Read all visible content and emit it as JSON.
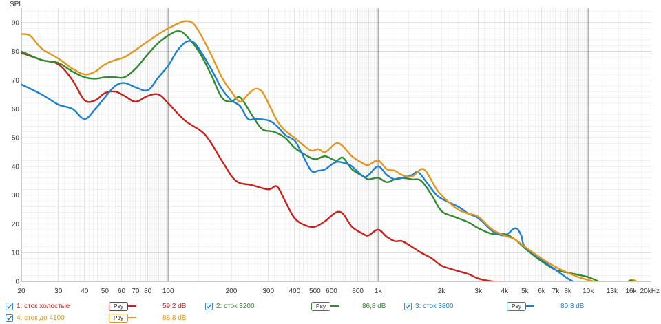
{
  "chart_data": {
    "type": "line",
    "ylabel": "SPL",
    "x_scale": "log",
    "xlim": [
      20,
      20000
    ],
    "ylim": [
      0,
      95
    ],
    "grid": true,
    "x_ticks": [
      {
        "v": 20,
        "label": "20"
      },
      {
        "v": 30,
        "label": "30"
      },
      {
        "v": 40,
        "label": "40"
      },
      {
        "v": 50,
        "label": "50"
      },
      {
        "v": 60,
        "label": "60"
      },
      {
        "v": 70,
        "label": "70"
      },
      {
        "v": 80,
        "label": "80"
      },
      {
        "v": 100,
        "label": "100"
      },
      {
        "v": 200,
        "label": "200"
      },
      {
        "v": 300,
        "label": "300"
      },
      {
        "v": 400,
        "label": "400"
      },
      {
        "v": 500,
        "label": "500"
      },
      {
        "v": 600,
        "label": "600"
      },
      {
        "v": 800,
        "label": "800"
      },
      {
        "v": 1000,
        "label": "1k"
      },
      {
        "v": 2000,
        "label": "2k"
      },
      {
        "v": 3000,
        "label": "3k"
      },
      {
        "v": 4000,
        "label": "4k"
      },
      {
        "v": 5000,
        "label": "5k"
      },
      {
        "v": 6000,
        "label": "6k"
      },
      {
        "v": 7000,
        "label": "7k"
      },
      {
        "v": 8000,
        "label": "8k"
      },
      {
        "v": 10000,
        "label": "10k"
      },
      {
        "v": 13000,
        "label": "13k"
      },
      {
        "v": 16000,
        "label": "16k"
      },
      {
        "v": 20000,
        "label": "20kHz"
      }
    ],
    "y_ticks": [
      0,
      10,
      20,
      30,
      40,
      50,
      60,
      70,
      80,
      90
    ],
    "series": [
      {
        "name": "1: сток холостые",
        "color": "#cc1f1a",
        "value_label": "59,2 dB",
        "points": [
          [
            20,
            79.5
          ],
          [
            25,
            77
          ],
          [
            30,
            75.5
          ],
          [
            35,
            70
          ],
          [
            40,
            63
          ],
          [
            45,
            63
          ],
          [
            50,
            65.5
          ],
          [
            56,
            66
          ],
          [
            62,
            64.5
          ],
          [
            70,
            62.5
          ],
          [
            80,
            64.5
          ],
          [
            90,
            65
          ],
          [
            100,
            62
          ],
          [
            120,
            56
          ],
          [
            150,
            51
          ],
          [
            180,
            42
          ],
          [
            210,
            35
          ],
          [
            250,
            33.5
          ],
          [
            300,
            32
          ],
          [
            330,
            33
          ],
          [
            360,
            28
          ],
          [
            400,
            22
          ],
          [
            450,
            19.5
          ],
          [
            500,
            19
          ],
          [
            560,
            21
          ],
          [
            630,
            24
          ],
          [
            680,
            23.5
          ],
          [
            750,
            19
          ],
          [
            850,
            16.5
          ],
          [
            900,
            16
          ],
          [
            1000,
            18
          ],
          [
            1100,
            15.5
          ],
          [
            1200,
            14
          ],
          [
            1300,
            14
          ],
          [
            1450,
            12
          ],
          [
            1600,
            10
          ],
          [
            1800,
            8
          ],
          [
            2000,
            5.5
          ],
          [
            2300,
            4
          ],
          [
            2700,
            2.5
          ],
          [
            3000,
            1
          ],
          [
            3500,
            0
          ],
          [
            4000,
            -0.3
          ],
          [
            5000,
            -0.8
          ]
        ]
      },
      {
        "name": "2: сток 3200",
        "color": "#2e8b2e",
        "value_label": "86,8 dB",
        "points": [
          [
            20,
            80
          ],
          [
            25,
            77
          ],
          [
            30,
            76
          ],
          [
            35,
            73
          ],
          [
            40,
            71
          ],
          [
            45,
            70.5
          ],
          [
            50,
            71
          ],
          [
            56,
            71
          ],
          [
            62,
            71
          ],
          [
            70,
            74
          ],
          [
            80,
            79
          ],
          [
            90,
            83
          ],
          [
            100,
            85.5
          ],
          [
            110,
            87
          ],
          [
            120,
            86
          ],
          [
            140,
            80
          ],
          [
            160,
            72
          ],
          [
            180,
            64
          ],
          [
            200,
            62.5
          ],
          [
            220,
            64
          ],
          [
            250,
            58
          ],
          [
            280,
            53
          ],
          [
            320,
            52
          ],
          [
            360,
            50
          ],
          [
            400,
            46.5
          ],
          [
            450,
            44
          ],
          [
            500,
            42.5
          ],
          [
            560,
            43.5
          ],
          [
            630,
            42
          ],
          [
            680,
            43
          ],
          [
            750,
            39
          ],
          [
            850,
            36.5
          ],
          [
            900,
            35.5
          ],
          [
            1000,
            36
          ],
          [
            1100,
            34.5
          ],
          [
            1200,
            35.5
          ],
          [
            1300,
            36
          ],
          [
            1450,
            35.5
          ],
          [
            1600,
            35
          ],
          [
            1800,
            30
          ],
          [
            2000,
            24.5
          ],
          [
            2300,
            22.5
          ],
          [
            2700,
            20.5
          ],
          [
            3000,
            18.5
          ],
          [
            3500,
            16.5
          ],
          [
            4000,
            16.5
          ],
          [
            4500,
            14.5
          ],
          [
            5000,
            11.5
          ],
          [
            6000,
            7
          ],
          [
            7000,
            4
          ],
          [
            8000,
            3
          ],
          [
            10000,
            1.5
          ],
          [
            12000,
            -1
          ],
          [
            13000,
            -2
          ]
        ]
      },
      {
        "name": "3: сток 3800",
        "color": "#1a7fd6",
        "value_label": "80,3 dB",
        "points": [
          [
            20,
            68.5
          ],
          [
            25,
            65
          ],
          [
            30,
            61.5
          ],
          [
            35,
            60
          ],
          [
            40,
            56.5
          ],
          [
            45,
            60
          ],
          [
            50,
            64
          ],
          [
            56,
            68
          ],
          [
            62,
            69
          ],
          [
            70,
            67.5
          ],
          [
            80,
            66.5
          ],
          [
            90,
            71
          ],
          [
            100,
            75
          ],
          [
            110,
            80
          ],
          [
            120,
            83
          ],
          [
            130,
            83.5
          ],
          [
            140,
            81
          ],
          [
            160,
            74
          ],
          [
            180,
            67
          ],
          [
            200,
            63
          ],
          [
            220,
            61
          ],
          [
            240,
            56.5
          ],
          [
            260,
            56.5
          ],
          [
            300,
            56
          ],
          [
            330,
            54
          ],
          [
            360,
            51
          ],
          [
            400,
            49
          ],
          [
            430,
            45
          ],
          [
            480,
            38.5
          ],
          [
            520,
            38.5
          ],
          [
            560,
            39
          ],
          [
            630,
            41.5
          ],
          [
            700,
            41
          ],
          [
            750,
            40
          ],
          [
            850,
            36.5
          ],
          [
            900,
            37
          ],
          [
            1000,
            40
          ],
          [
            1100,
            37
          ],
          [
            1200,
            35.5
          ],
          [
            1300,
            36
          ],
          [
            1450,
            37
          ],
          [
            1550,
            38
          ],
          [
            1700,
            34.5
          ],
          [
            1900,
            30
          ],
          [
            2100,
            28
          ],
          [
            2400,
            26
          ],
          [
            2700,
            23.5
          ],
          [
            3000,
            22
          ],
          [
            3500,
            17.5
          ],
          [
            4000,
            16
          ],
          [
            4500,
            18.5
          ],
          [
            4800,
            16
          ],
          [
            5000,
            12
          ],
          [
            6000,
            7.5
          ],
          [
            7000,
            4
          ],
          [
            8000,
            1
          ],
          [
            9000,
            -1
          ]
        ]
      },
      {
        "name": "4: сток до 4100",
        "color": "#e5951a",
        "value_label": "88,8 dB",
        "points": [
          [
            20,
            86
          ],
          [
            22,
            85.5
          ],
          [
            25,
            81
          ],
          [
            30,
            77.5
          ],
          [
            35,
            74
          ],
          [
            40,
            72
          ],
          [
            45,
            73
          ],
          [
            50,
            75.5
          ],
          [
            56,
            77
          ],
          [
            62,
            78
          ],
          [
            70,
            80.5
          ],
          [
            80,
            83.5
          ],
          [
            90,
            86
          ],
          [
            100,
            88
          ],
          [
            110,
            89.5
          ],
          [
            120,
            90.5
          ],
          [
            130,
            90
          ],
          [
            140,
            87
          ],
          [
            160,
            79
          ],
          [
            180,
            71
          ],
          [
            200,
            66
          ],
          [
            220,
            62.5
          ],
          [
            240,
            65
          ],
          [
            260,
            67
          ],
          [
            280,
            66
          ],
          [
            300,
            62
          ],
          [
            330,
            56
          ],
          [
            360,
            52.5
          ],
          [
            400,
            50
          ],
          [
            430,
            48
          ],
          [
            480,
            45.5
          ],
          [
            520,
            46
          ],
          [
            560,
            45
          ],
          [
            630,
            48
          ],
          [
            680,
            47
          ],
          [
            750,
            43.5
          ],
          [
            850,
            41
          ],
          [
            900,
            40.5
          ],
          [
            1000,
            42
          ],
          [
            1100,
            39
          ],
          [
            1200,
            38.5
          ],
          [
            1300,
            37
          ],
          [
            1450,
            36.5
          ],
          [
            1600,
            39
          ],
          [
            1700,
            38
          ],
          [
            1900,
            32
          ],
          [
            2100,
            28.5
          ],
          [
            2400,
            25
          ],
          [
            2700,
            23.5
          ],
          [
            3000,
            22.5
          ],
          [
            3500,
            18
          ],
          [
            4000,
            16
          ],
          [
            4500,
            14.5
          ],
          [
            5000,
            12
          ],
          [
            6000,
            8
          ],
          [
            7000,
            5
          ],
          [
            8000,
            3
          ],
          [
            9000,
            1.5
          ],
          [
            10000,
            0.5
          ],
          [
            12000,
            -1
          ],
          [
            13000,
            -2
          ],
          [
            14000,
            -2
          ],
          [
            15000,
            -1
          ],
          [
            16000,
            0.5
          ],
          [
            17000,
            0
          ],
          [
            18000,
            -1.5
          ]
        ]
      }
    ],
    "extra_bumps": [
      {
        "series": 1,
        "points": [
          [
            13000,
            -1.5
          ],
          [
            14000,
            -1.5
          ],
          [
            15000,
            -0.5
          ],
          [
            16000,
            0.3
          ],
          [
            17000,
            -0.5
          ],
          [
            18000,
            -1.5
          ]
        ]
      },
      {
        "series": 2,
        "points": [
          [
            9000,
            -0.5
          ],
          [
            10000,
            -0.5
          ]
        ]
      }
    ]
  },
  "legend": [
    {
      "name": "1: сток холостые",
      "value": "59,2 dB",
      "color": "#cc1f1a",
      "checked": true,
      "button": "Psy"
    },
    {
      "name": "2: сток 3200",
      "value": "86,8 dB",
      "color": "#2e8b2e",
      "checked": true,
      "button": "Psy"
    },
    {
      "name": "3: сток 3800",
      "value": "80,3 dB",
      "color": "#1a7fd6",
      "checked": true,
      "button": "Psy"
    },
    {
      "name": "4: сток до 4100",
      "value": "88,8 dB",
      "color": "#e5951a",
      "checked": true,
      "button": "Psy"
    }
  ]
}
